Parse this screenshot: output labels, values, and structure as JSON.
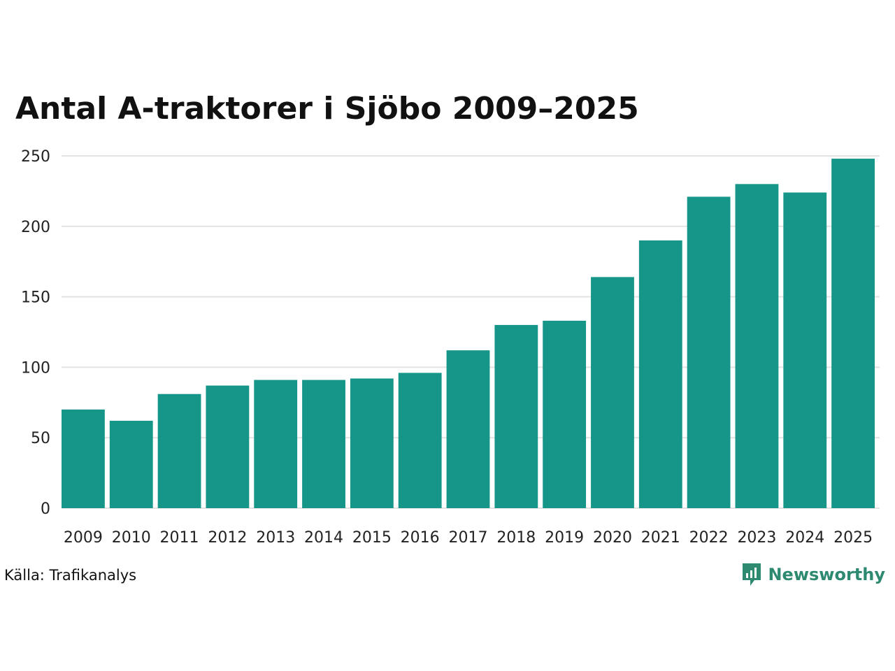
{
  "source_text": "Källa: Trafikanalys",
  "brand": {
    "name": "Newsworthy",
    "icon": "newsworthy-logo-icon",
    "color": "#2d8a71"
  },
  "colors": {
    "bar": "#159688",
    "grid": "#e3e3e3",
    "text": "#222222"
  },
  "chart_data": {
    "type": "bar",
    "title": "Antal A-traktorer i Sjöbo 2009–2025",
    "xlabel": "",
    "ylabel": "",
    "categories": [
      "2009",
      "2010",
      "2011",
      "2012",
      "2013",
      "2014",
      "2015",
      "2016",
      "2017",
      "2018",
      "2019",
      "2020",
      "2021",
      "2022",
      "2023",
      "2024",
      "2025"
    ],
    "values": [
      70,
      62,
      81,
      87,
      91,
      91,
      92,
      96,
      112,
      130,
      133,
      164,
      190,
      221,
      230,
      224,
      248
    ],
    "ylim": [
      0,
      250
    ],
    "yticks": [
      0,
      50,
      100,
      150,
      200,
      250
    ],
    "grid": true,
    "legend": "none"
  }
}
